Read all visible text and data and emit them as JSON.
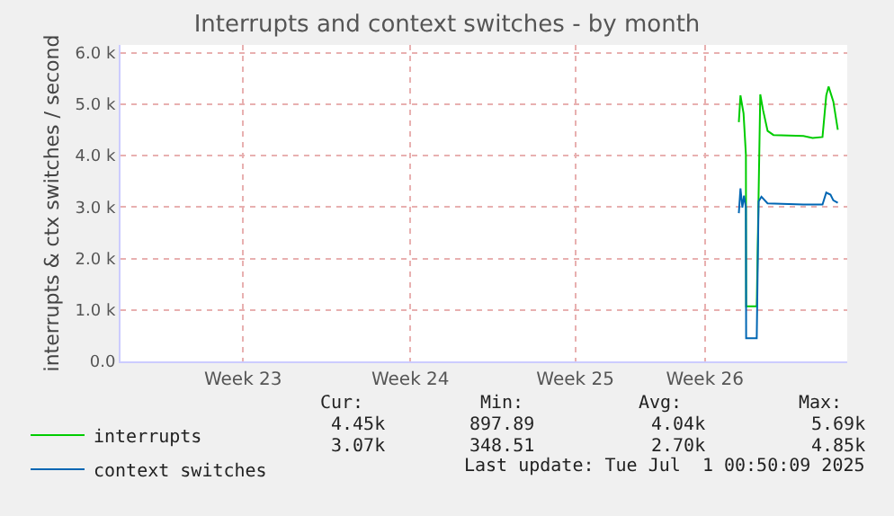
{
  "chart_data": {
    "type": "line",
    "title": "Interrupts and context switches - by month",
    "ylabel": "interrupts & ctx switches / second",
    "xlim": [
      "2025-05-30T07:12",
      "2025-06-30T03:22"
    ],
    "xticks": [
      {
        "value": "2025-06-04T12:00",
        "label": "Week 23"
      },
      {
        "value": "2025-06-11T14:24",
        "label": "Week 24"
      },
      {
        "value": "2025-06-18T14:24",
        "label": "Week 25"
      },
      {
        "value": "2025-06-24T02:24",
        "label": "Week 26"
      }
    ],
    "ylim": [
      0,
      6150
    ],
    "yticks": [
      {
        "value": 0,
        "label": "0.0"
      },
      {
        "value": 1000,
        "label": "1.0 k"
      },
      {
        "value": 2000,
        "label": "2.0 k"
      },
      {
        "value": 3000,
        "label": "3.0 k"
      },
      {
        "value": 4000,
        "label": "4.0 k"
      },
      {
        "value": 5000,
        "label": "5.0 k"
      },
      {
        "value": 6000,
        "label": "6.0 k"
      }
    ],
    "grid": true,
    "legend": "bottom left",
    "marker": "none",
    "line_style": "solid",
    "series": [
      {
        "name": "interrupts",
        "color": "#00cc00",
        "x": [
          "2025-06-25T12:58",
          "2025-06-25T14:38",
          "2025-06-25T17:46",
          "2025-06-25T20:10",
          "2025-06-25T20:24",
          "2025-06-26T07:12",
          "2025-06-26T10:48",
          "2025-06-26T13:41",
          "2025-06-26T18:14",
          "2025-06-27T00:14",
          "2025-06-28T06:43",
          "2025-06-28T16:05",
          "2025-06-29T02:10",
          "2025-06-29T06:00",
          "2025-06-29T08:24",
          "2025-06-29T13:12",
          "2025-06-29T17:46"
        ],
        "values": [
          4650,
          5170,
          4820,
          4020,
          1070,
          1070,
          5190,
          4880,
          4480,
          4400,
          4380,
          4340,
          4360,
          5170,
          5340,
          5050,
          4500
        ]
      },
      {
        "name": "context switches",
        "color": "#0066b3",
        "x": [
          "2025-06-25T12:58",
          "2025-06-25T14:38",
          "2025-06-25T16:34",
          "2025-06-25T18:14",
          "2025-06-25T20:10",
          "2025-06-25T20:24",
          "2025-06-26T07:12",
          "2025-06-26T09:07",
          "2025-06-26T12:00",
          "2025-06-26T18:14",
          "2025-06-28T06:43",
          "2025-06-29T02:10",
          "2025-06-29T06:00",
          "2025-06-29T10:19",
          "2025-06-29T13:12",
          "2025-06-29T17:46"
        ],
        "values": [
          2880,
          3360,
          2990,
          3220,
          2990,
          450,
          450,
          3110,
          3200,
          3070,
          3050,
          3050,
          3280,
          3240,
          3130,
          3080
        ]
      }
    ],
    "annotations": [
      "Cur:",
      "Min:",
      "Avg:",
      "Max:",
      "4.45k",
      "897.89",
      "4.04k",
      "5.69k",
      "3.07k",
      "348.51",
      "2.70k",
      "4.85k",
      "Last update: Tue Jul  1 00:50:09 2025"
    ]
  }
}
